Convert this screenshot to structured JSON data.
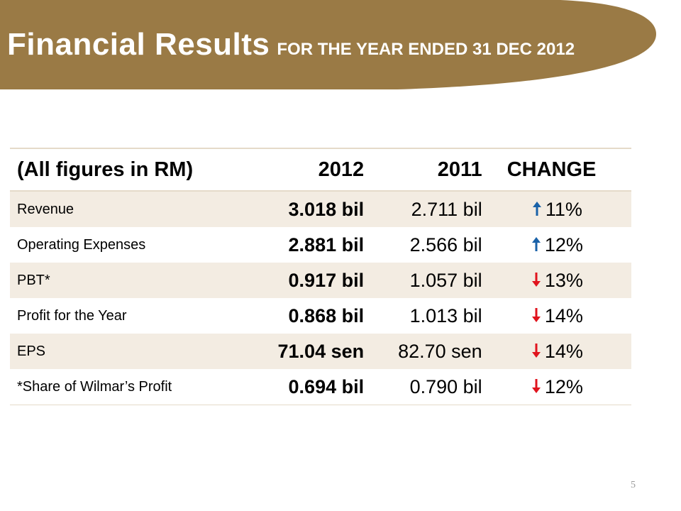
{
  "colors": {
    "banner": "#9a7a45",
    "up": "#1a62a8",
    "down": "#e0141e",
    "row_shade": "#f3ece2"
  },
  "header": {
    "title": "Financial Results",
    "subtitle": "FOR THE YEAR ENDED 31 DEC 2012"
  },
  "table": {
    "columns": [
      "(All figures in RM)",
      "2012",
      "2011",
      "CHANGE"
    ],
    "rows": [
      {
        "label": "Revenue",
        "y2012": "3.018 bil",
        "y2011": "2.711 bil",
        "direction": "up",
        "change": "11%"
      },
      {
        "label": "Operating Expenses",
        "y2012": "2.881 bil",
        "y2011": "2.566 bil",
        "direction": "up",
        "change": "12%"
      },
      {
        "label": "PBT*",
        "y2012": "0.917 bil",
        "y2011": "1.057 bil",
        "direction": "down",
        "change": "13%"
      },
      {
        "label": "Profit for the Year",
        "y2012": "0.868 bil",
        "y2011": "1.013 bil",
        "direction": "down",
        "change": "14%"
      },
      {
        "label": "EPS",
        "y2012": "71.04 sen",
        "y2011": "82.70 sen",
        "direction": "down",
        "change": "14%"
      },
      {
        "label": "*Share of Wilmar’s Profit",
        "y2012": "0.694 bil",
        "y2011": "0.790 bil",
        "direction": "down",
        "change": "12%"
      }
    ]
  },
  "footer": {
    "page_number": "5"
  }
}
